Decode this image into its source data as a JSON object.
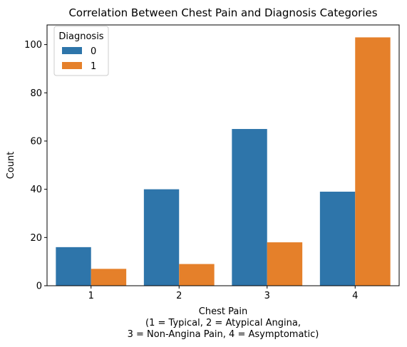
{
  "chart_data": {
    "type": "bar",
    "title": "Correlation Between Chest Pain and Diagnosis Categories",
    "xlabel_lines": [
      "Chest Pain",
      "(1 = Typical, 2 = Atypical Angina,",
      "3 = Non-Angina Pain, 4 = Asymptomatic)"
    ],
    "ylabel": "Count",
    "categories": [
      "1",
      "2",
      "3",
      "4"
    ],
    "series": [
      {
        "name": "0",
        "values": [
          16,
          40,
          65,
          39
        ],
        "color": "#2e75aa"
      },
      {
        "name": "1",
        "values": [
          7,
          9,
          18,
          103
        ],
        "color": "#e5802a"
      }
    ],
    "ylim": [
      0,
      108.15
    ],
    "yticks": [
      0,
      20,
      40,
      60,
      80,
      100
    ],
    "legend": {
      "title": "Diagnosis",
      "placement": "top-left"
    },
    "grid": false
  }
}
